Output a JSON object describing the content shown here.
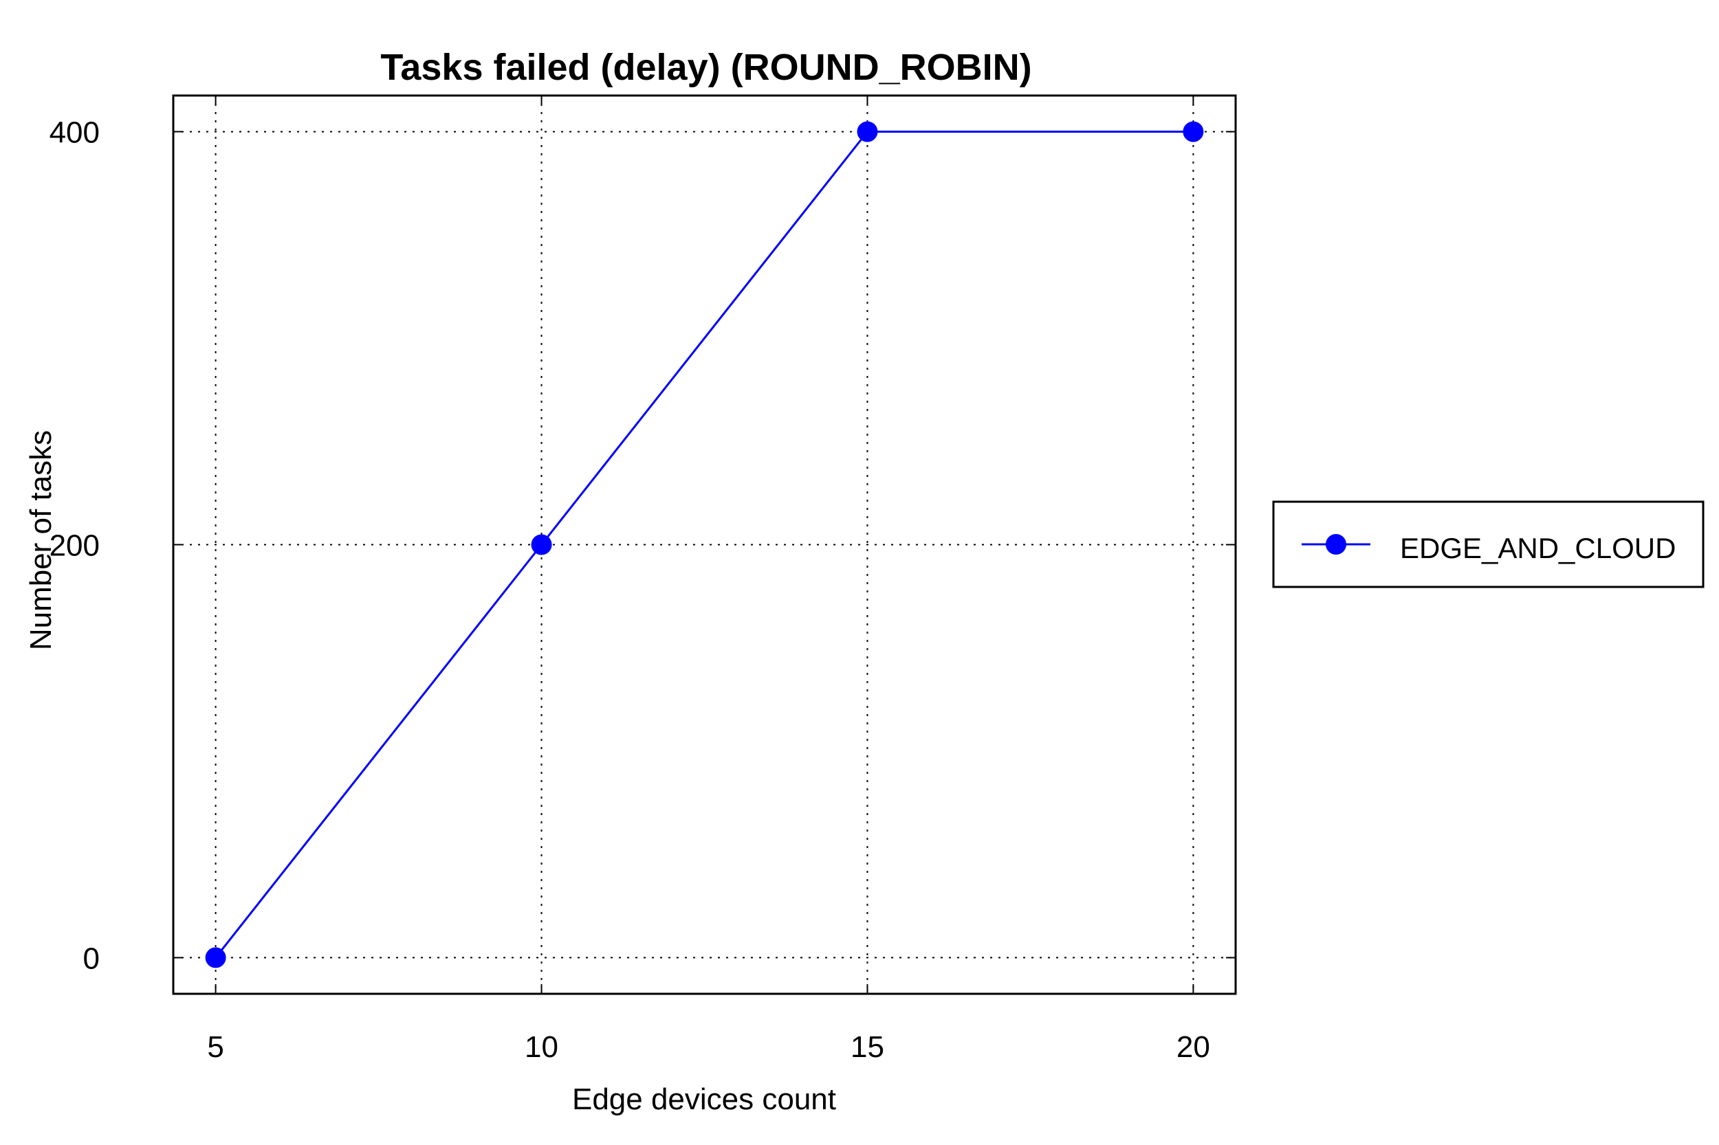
{
  "chart_data": {
    "type": "line",
    "title": "Tasks failed (delay) (ROUND_ROBIN)",
    "xlabel": "Edge devices count",
    "ylabel": "Number of tasks",
    "x": [
      5,
      10,
      15,
      20
    ],
    "xticks": [
      5,
      10,
      15,
      20
    ],
    "yticks": [
      0,
      200,
      400
    ],
    "xlim": [
      4.35,
      20.65
    ],
    "ylim": [
      -17.5,
      417.5
    ],
    "grid": true,
    "legend_position": "right",
    "series": [
      {
        "name": "EDGE_AND_CLOUD",
        "values": [
          0,
          200,
          400,
          400
        ],
        "color": "#0000ff",
        "marker": "circle"
      }
    ]
  }
}
